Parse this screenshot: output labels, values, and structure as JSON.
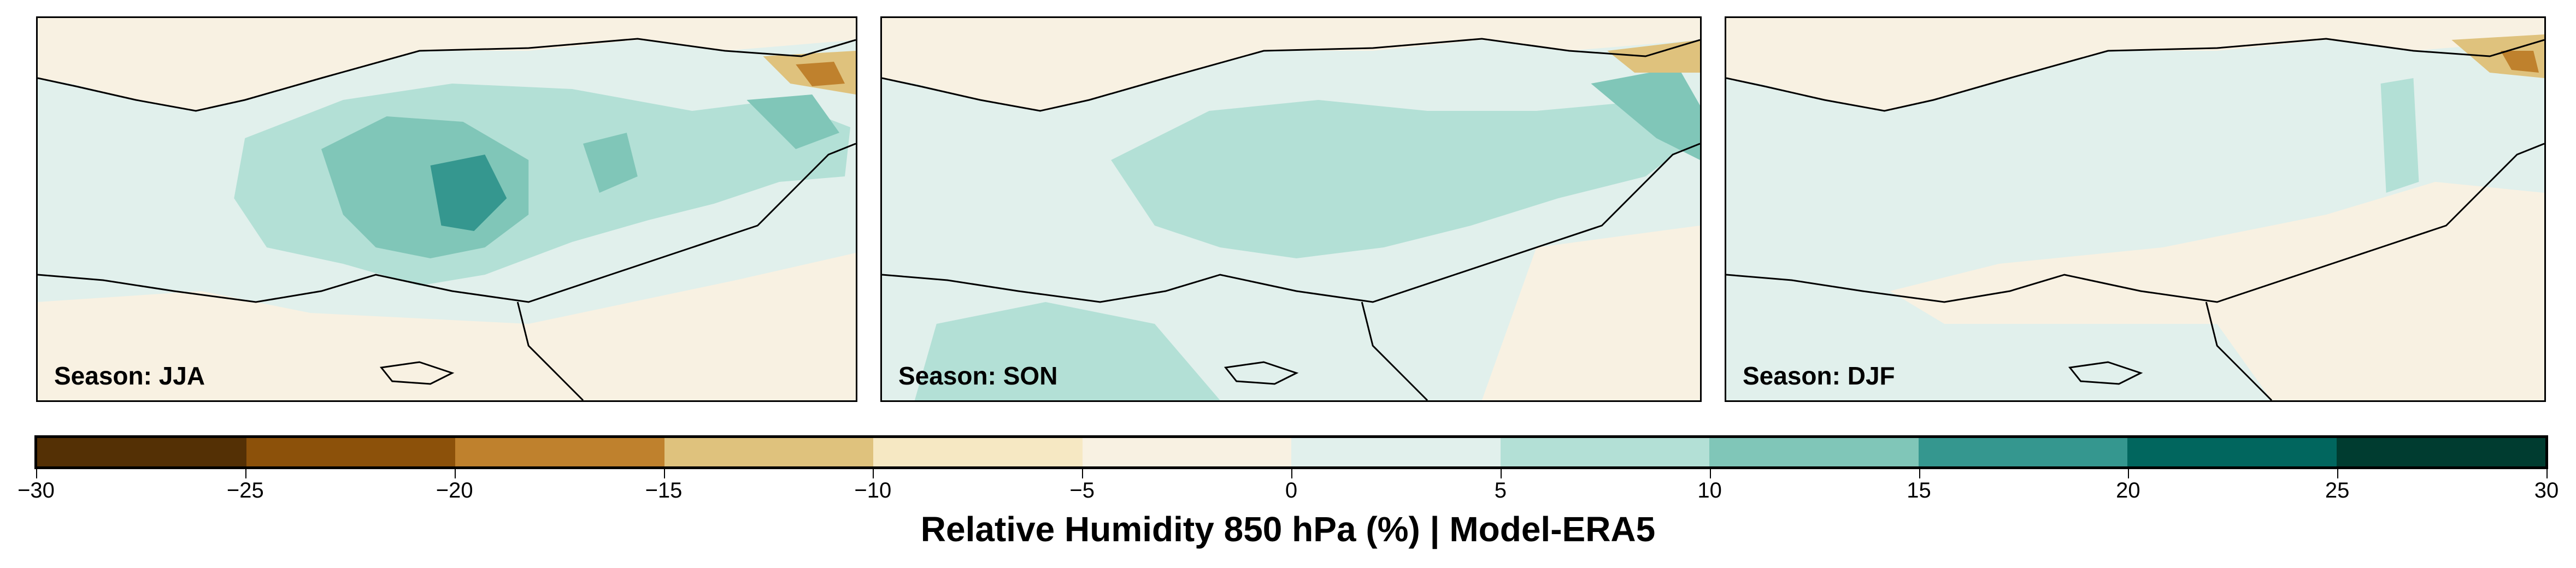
{
  "panels": [
    {
      "season_label": "Season: JJA",
      "id": "jja"
    },
    {
      "season_label": "Season: SON",
      "id": "son"
    },
    {
      "season_label": "Season: DJF",
      "id": "djf"
    }
  ],
  "colorbar": {
    "title": "Relative Humidity 850 hPa (%) | Model-ERA5",
    "ticks": [
      "−30",
      "−25",
      "−20",
      "−15",
      "−10",
      "−5",
      "0",
      "5",
      "10",
      "15",
      "20",
      "25",
      "30"
    ],
    "bins": [
      {
        "from": -30,
        "to": -25,
        "color": "#543005"
      },
      {
        "from": -25,
        "to": -20,
        "color": "#8c510a"
      },
      {
        "from": -20,
        "to": -15,
        "color": "#bf812d"
      },
      {
        "from": -15,
        "to": -10,
        "color": "#dfc27d"
      },
      {
        "from": -10,
        "to": -5,
        "color": "#f6e8c3"
      },
      {
        "from": -5,
        "to": 0,
        "color": "#f8f1e2"
      },
      {
        "from": 0,
        "to": 5,
        "color": "#e1f0ec"
      },
      {
        "from": 5,
        "to": 10,
        "color": "#b3e0d6"
      },
      {
        "from": 10,
        "to": 15,
        "color": "#80c6b8"
      },
      {
        "from": 15,
        "to": 20,
        "color": "#35978f"
      },
      {
        "from": 20,
        "to": 25,
        "color": "#01665e"
      },
      {
        "from": 25,
        "to": 30,
        "color": "#003c30"
      }
    ]
  }
}
